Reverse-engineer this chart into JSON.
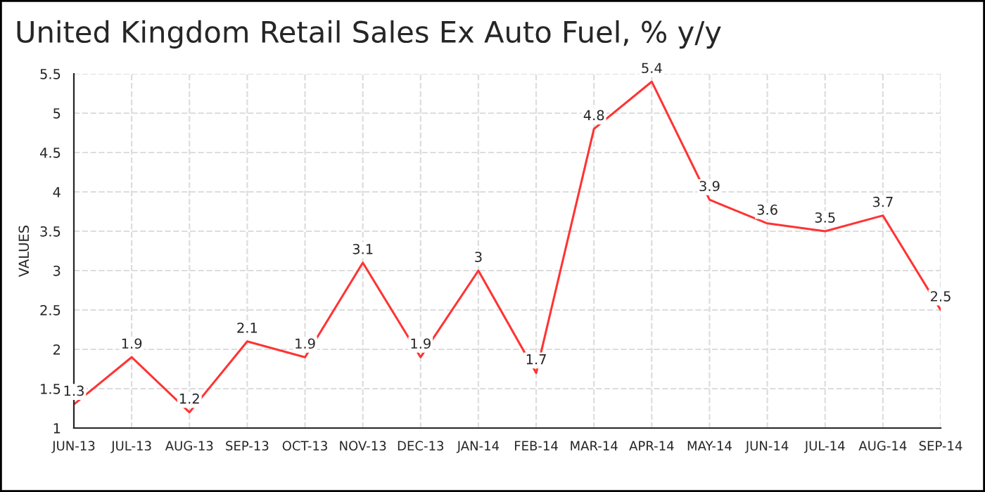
{
  "chart_data": {
    "type": "line",
    "title": "United Kingdom Retail Sales Ex Auto Fuel, % y/y",
    "ylabel": "VALUES",
    "categories": [
      "JUN-13",
      "JUL-13",
      "AUG-13",
      "SEP-13",
      "OCT-13",
      "NOV-13",
      "DEC-13",
      "JAN-14",
      "FEB-14",
      "MAR-14",
      "APR-14",
      "MAY-14",
      "JUN-14",
      "JUL-14",
      "AUG-14",
      "SEP-14"
    ],
    "series": [
      {
        "color": "#ff3333",
        "values": [
          1.3,
          1.9,
          1.2,
          2.1,
          1.9,
          3.1,
          1.9,
          3,
          1.7,
          4.8,
          5.4,
          3.9,
          3.6,
          3.5,
          3.7,
          2.5
        ]
      }
    ],
    "ylim": [
      1,
      5.5
    ],
    "yticks": [
      1,
      1.5,
      2,
      2.5,
      3,
      3.5,
      4,
      4.5,
      5,
      5.5
    ],
    "grid": true,
    "data_labels": true,
    "marker": "none",
    "line_style": "solid"
  }
}
